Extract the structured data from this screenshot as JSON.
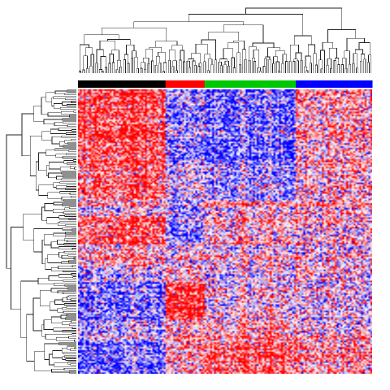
{
  "chart_data": {
    "type": "heatmap",
    "title": "",
    "xlabel": "",
    "ylabel": "",
    "legend": "none",
    "grid": false,
    "color_scale": {
      "low": "#0000ff",
      "mid": "#ffffff",
      "high": "#ff0000"
    },
    "value_range": [
      -1,
      1
    ],
    "sample_groups": [
      {
        "color": "#000000",
        "samples": 47
      },
      {
        "color": "#ff0000",
        "samples": 21
      },
      {
        "color": "#00c800",
        "samples": 49
      },
      {
        "color": "#0000ff",
        "samples": 41
      }
    ],
    "gene_clusters": [
      {
        "genes": 48,
        "group_means": [
          0.75,
          -0.45,
          -0.55,
          0.3
        ]
      },
      {
        "genes": 22,
        "group_means": [
          0.55,
          -0.2,
          -0.35,
          0.15
        ]
      },
      {
        "genes": 10,
        "group_means": [
          0.1,
          -0.3,
          0.2,
          0.3
        ]
      },
      {
        "genes": 18,
        "group_means": [
          0.65,
          -0.5,
          0.25,
          0.1
        ]
      },
      {
        "genes": 14,
        "group_means": [
          0.2,
          -0.1,
          0.05,
          0.0
        ]
      },
      {
        "genes": 10,
        "group_means": [
          -0.2,
          0.2,
          0.0,
          0.15
        ]
      },
      {
        "genes": 24,
        "group_means": [
          -0.6,
          0.85,
          0.05,
          -0.05
        ]
      },
      {
        "genes": 14,
        "group_means": [
          -0.3,
          0.25,
          0.3,
          0.1
        ]
      },
      {
        "genes": 20,
        "group_means": [
          -0.7,
          0.2,
          0.6,
          0.3
        ]
      }
    ],
    "row_dendrogram": {
      "leaves": 180
    },
    "column_dendrogram": {
      "leaves": 158
    }
  }
}
